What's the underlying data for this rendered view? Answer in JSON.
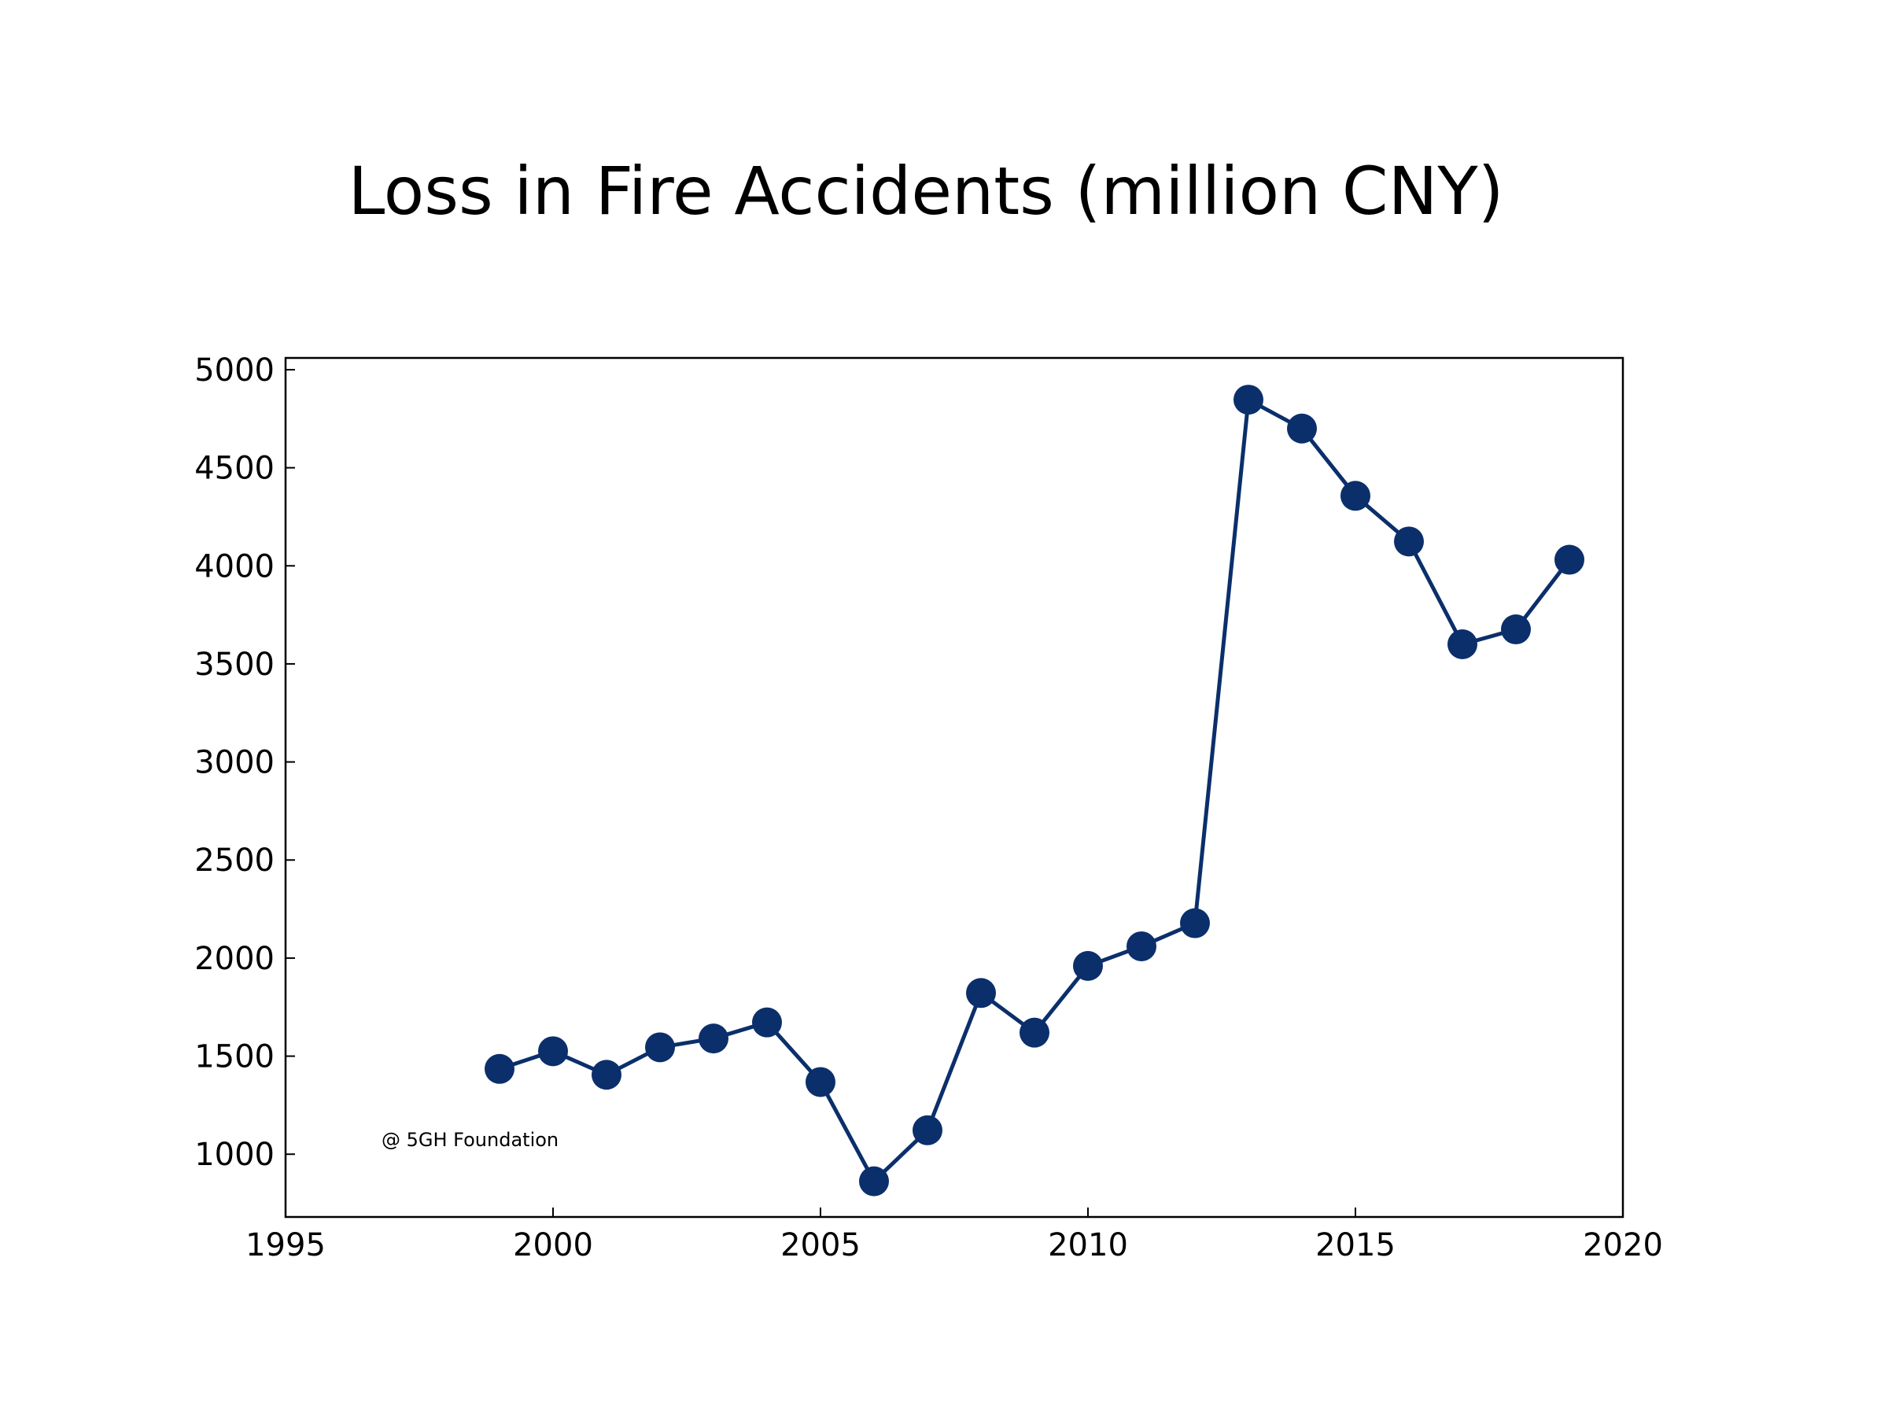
{
  "chart_data": {
    "type": "line",
    "title": "Loss in Fire Accidents (million CNY)",
    "xlabel": "",
    "ylabel": "",
    "xlim": [
      1995,
      2020
    ],
    "ylim": [
      680,
      5060
    ],
    "x_ticks": [
      1995,
      2000,
      2005,
      2010,
      2015,
      2020
    ],
    "y_ticks": [
      1000,
      1500,
      2000,
      2500,
      3000,
      3500,
      4000,
      4500,
      5000
    ],
    "grid": false,
    "legend": "none",
    "marker": "circle",
    "annotation": "@ 5GH Foundation",
    "series": [
      {
        "color": "#0b2f6b",
        "x": [
          1999,
          2000,
          2001,
          2002,
          2003,
          2004,
          2005,
          2006,
          2007,
          2008,
          2009,
          2010,
          2011,
          2012,
          2013,
          2014,
          2015,
          2016,
          2017,
          2018,
          2019
        ],
        "y": [
          1435,
          1525,
          1405,
          1545,
          1590,
          1672,
          1368,
          862,
          1122,
          1822,
          1620,
          1960,
          2060,
          2178,
          4847,
          4700,
          4357,
          4124,
          3600,
          3676,
          4031
        ]
      }
    ]
  }
}
